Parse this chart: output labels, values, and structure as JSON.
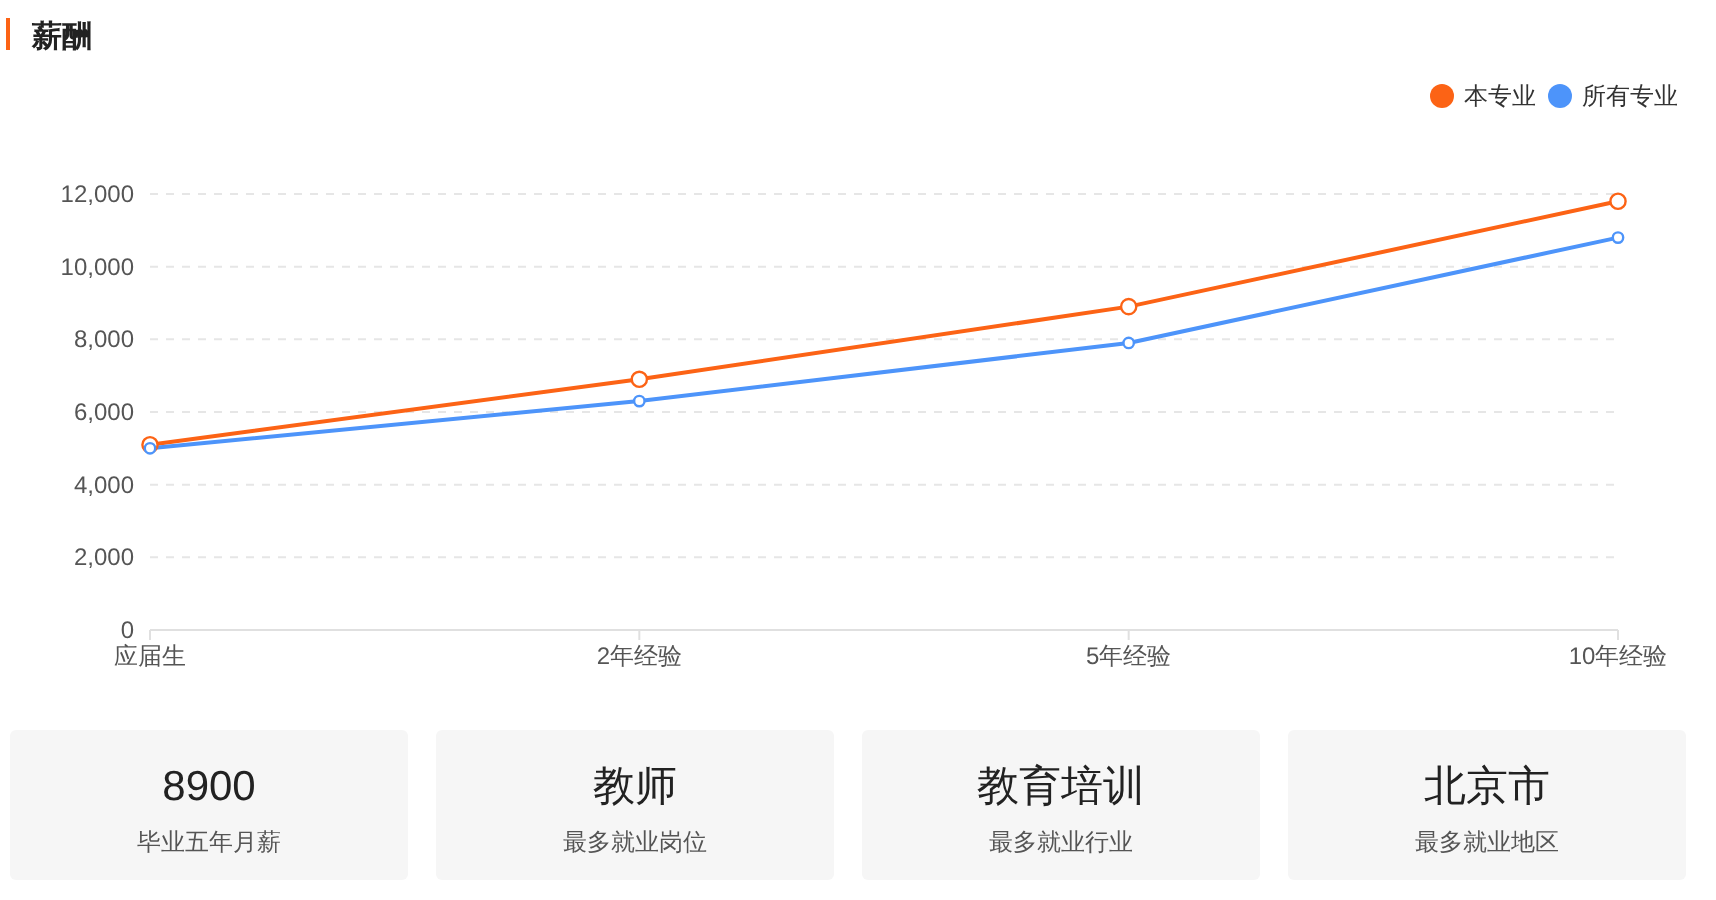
{
  "chart_data": [
    {
      "type": "line",
      "title": "薪酬",
      "categories": [
        "应届生",
        "2年经验",
        "5年经验",
        "10年经验"
      ],
      "series": [
        {
          "name": "本专业",
          "color": "#fc6315",
          "values": [
            5100,
            6900,
            8900,
            11800
          ]
        },
        {
          "name": "所有专业",
          "color": "#4d94fa",
          "values": [
            5000,
            6300,
            7900,
            10800
          ]
        }
      ],
      "ylim": [
        0,
        12000
      ],
      "yticks": [
        0,
        {
          "value": 2000,
          "label": "2,000"
        },
        {
          "value": 4000,
          "label": "4,000"
        },
        {
          "value": 6000,
          "label": "6,000"
        },
        {
          "value": 8000,
          "label": "8,000"
        },
        {
          "value": 10000,
          "label": "10,000"
        },
        {
          "value": 12000,
          "label": "12,000"
        }
      ],
      "grid": "y",
      "legend": "top right",
      "marker": "circle",
      "line_style": "solid"
    },
    {
      "type": "other",
      "annotations": [
        "8900",
        "毕业五年月薪",
        "教师",
        "最多就业岗位",
        "教育培训",
        "最多就业行业",
        "北京市",
        "最多就业地区"
      ]
    }
  ]
}
